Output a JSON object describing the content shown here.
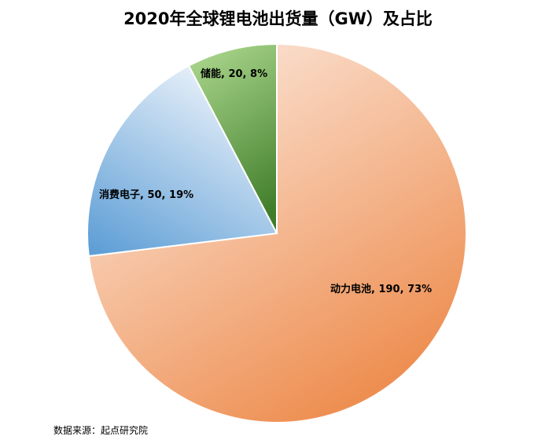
{
  "chart_data": {
    "type": "pie",
    "title": "2020年全球锂电池出货量（GW）及占比",
    "slices": [
      {
        "name": "动力电池",
        "value": 190,
        "percent": "73%",
        "label": "动力电池, 190, 73%",
        "color_start": "#fdf1ea",
        "color_end": "#ee8f52"
      },
      {
        "name": "消费电子",
        "value": 50,
        "percent": "19%",
        "label": "消费电子, 50, 19%",
        "color_start": "#eef4fb",
        "color_end": "#5f9fd6"
      },
      {
        "name": "储能",
        "value": 20,
        "percent": "8%",
        "label": "储能, 20, 8%",
        "color_start": "#a8d48a",
        "color_end": "#3f7d2a"
      }
    ],
    "start_angle": "12 o'clock",
    "direction": "clockwise",
    "legend": "none"
  },
  "footer": {
    "source": "数据来源：起点研究院"
  }
}
